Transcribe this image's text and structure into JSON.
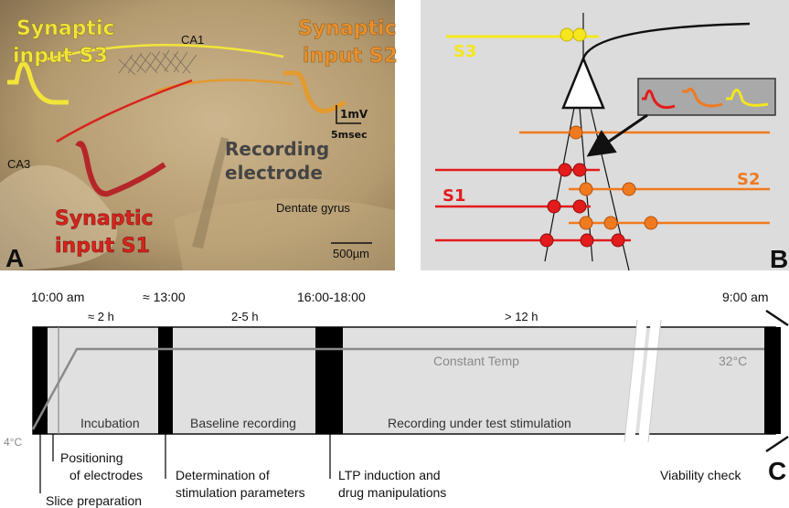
{
  "panel_a": {
    "letter": "A",
    "synaptic_s3": [
      "Synaptic",
      "input S3"
    ],
    "synaptic_s2": [
      "Synaptic",
      "input S2"
    ],
    "synaptic_s1": [
      "Synaptic",
      "input S1"
    ],
    "region_ca1": "CA1",
    "region_ca3": "CA3",
    "recording": [
      "Recording",
      "electrode"
    ],
    "dentate": "Dentate gyrus",
    "scale_mv": "1mV",
    "scale_ms": "5msec",
    "scale_um": "500µm",
    "colors": {
      "s1": "#d8231c",
      "s2": "#e8902c",
      "s3": "#f2e53a",
      "tissue": "#b79c73"
    }
  },
  "panel_b": {
    "letter": "B",
    "s1": "S1",
    "s2": "S2",
    "s3": "S3",
    "colors": {
      "s1": "#e31b1b",
      "s2": "#f07a1e",
      "s3": "#f5e61d",
      "bg": "#dcdcdc"
    }
  },
  "panel_c": {
    "letter": "C",
    "time_1000": "10:00 am",
    "time_1300": "≈ 13:00",
    "time_1600": "16:00-18:00",
    "time_900": "9:00 am",
    "dur_2h": "≈ 2 h",
    "dur_25h": "2-5 h",
    "dur_12h": "> 12 h",
    "constant_temp": "Constant Temp",
    "temp_32": "32°C",
    "temp_4": "4°C",
    "phase_incubation": "Incubation",
    "phase_baseline": "Baseline recording",
    "phase_test": "Recording under test stimulation",
    "note_positioning": [
      "Positioning",
      "of electrodes"
    ],
    "note_determination": [
      "Determination of",
      "stimulation parameters"
    ],
    "note_ltp": [
      "LTP induction and",
      "drug manipulations"
    ],
    "note_viability": "Viability check",
    "note_slice": "Slice preparation"
  }
}
